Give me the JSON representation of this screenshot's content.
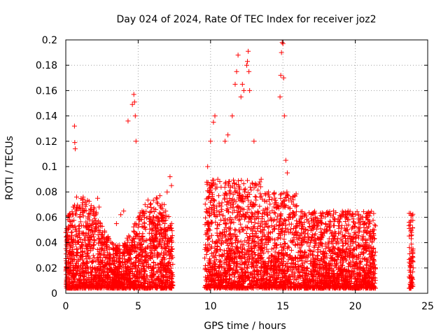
{
  "chart_data": {
    "type": "scatter",
    "title": "Day 024 of 2024, Rate Of TEC Index for receiver joz2",
    "xlabel": "GPS time / hours",
    "ylabel": "ROTI / TECUs",
    "xlim": [
      0,
      25
    ],
    "ylim": [
      0,
      0.2
    ],
    "xticks": [
      0,
      5,
      10,
      15,
      20,
      25
    ],
    "yticks": [
      0,
      0.02,
      0.04,
      0.06,
      0.08,
      0.1,
      0.12,
      0.14,
      0.16,
      0.18,
      0.2
    ],
    "xtick_labels": [
      "0",
      "5",
      "10",
      "15",
      "20",
      "25"
    ],
    "ytick_labels": [
      "0",
      "0.02",
      "0.04",
      "0.06",
      "0.08",
      "0.1",
      "0.12",
      "0.14",
      "0.16",
      "0.18",
      "0.2"
    ],
    "grid": true,
    "marker": "+",
    "color": "#ff0000",
    "series": [
      {
        "name": "ROTI",
        "coverage_hours": [
          [
            0,
            7.4
          ],
          [
            9.6,
            21.4
          ],
          [
            23.7,
            24.0
          ]
        ],
        "points": [
          [
            0.15,
            0.012
          ],
          [
            0.3,
            0.038
          ],
          [
            0.5,
            0.022
          ],
          [
            0.6,
            0.132
          ],
          [
            0.62,
            0.119
          ],
          [
            0.65,
            0.114
          ],
          [
            0.75,
            0.076
          ],
          [
            0.9,
            0.053
          ],
          [
            0.95,
            0.049
          ],
          [
            1.0,
            0.03
          ],
          [
            1.5,
            0.025
          ],
          [
            2.2,
            0.075
          ],
          [
            2.3,
            0.068
          ],
          [
            2.5,
            0.04
          ],
          [
            3.0,
            0.035
          ],
          [
            3.5,
            0.055
          ],
          [
            3.8,
            0.062
          ],
          [
            4.0,
            0.065
          ],
          [
            4.3,
            0.136
          ],
          [
            4.6,
            0.149
          ],
          [
            4.7,
            0.157
          ],
          [
            4.75,
            0.151
          ],
          [
            4.8,
            0.14
          ],
          [
            4.85,
            0.12
          ],
          [
            5.0,
            0.045
          ],
          [
            5.5,
            0.035
          ],
          [
            6.0,
            0.05
          ],
          [
            6.5,
            0.077
          ],
          [
            6.8,
            0.07
          ],
          [
            7.0,
            0.08
          ],
          [
            7.2,
            0.092
          ],
          [
            7.3,
            0.085
          ],
          [
            9.8,
            0.1
          ],
          [
            10.0,
            0.12
          ],
          [
            10.2,
            0.135
          ],
          [
            10.3,
            0.14
          ],
          [
            10.5,
            0.09
          ],
          [
            11.0,
            0.12
          ],
          [
            11.2,
            0.125
          ],
          [
            11.5,
            0.14
          ],
          [
            11.7,
            0.165
          ],
          [
            11.8,
            0.175
          ],
          [
            11.9,
            0.188
          ],
          [
            12.1,
            0.155
          ],
          [
            12.2,
            0.165
          ],
          [
            12.3,
            0.16
          ],
          [
            12.5,
            0.18
          ],
          [
            12.55,
            0.183
          ],
          [
            12.6,
            0.191
          ],
          [
            12.65,
            0.175
          ],
          [
            12.7,
            0.16
          ],
          [
            13.0,
            0.12
          ],
          [
            13.5,
            0.09
          ],
          [
            14.0,
            0.08
          ],
          [
            14.5,
            0.07
          ],
          [
            14.8,
            0.155
          ],
          [
            14.85,
            0.172
          ],
          [
            14.9,
            0.19
          ],
          [
            14.95,
            0.198
          ],
          [
            15.0,
            0.197
          ],
          [
            15.05,
            0.17
          ],
          [
            15.1,
            0.14
          ],
          [
            15.2,
            0.105
          ],
          [
            15.3,
            0.095
          ],
          [
            15.5,
            0.06
          ],
          [
            16.0,
            0.055
          ],
          [
            17.0,
            0.057
          ],
          [
            18.0,
            0.05
          ],
          [
            18.5,
            0.065
          ],
          [
            19.0,
            0.06
          ],
          [
            19.5,
            0.065
          ],
          [
            20.0,
            0.055
          ],
          [
            20.5,
            0.06
          ],
          [
            21.0,
            0.055
          ],
          [
            21.3,
            0.05
          ],
          [
            23.8,
            0.054
          ],
          [
            23.9,
            0.035
          ],
          [
            24.0,
            0.02
          ]
        ]
      }
    ]
  }
}
